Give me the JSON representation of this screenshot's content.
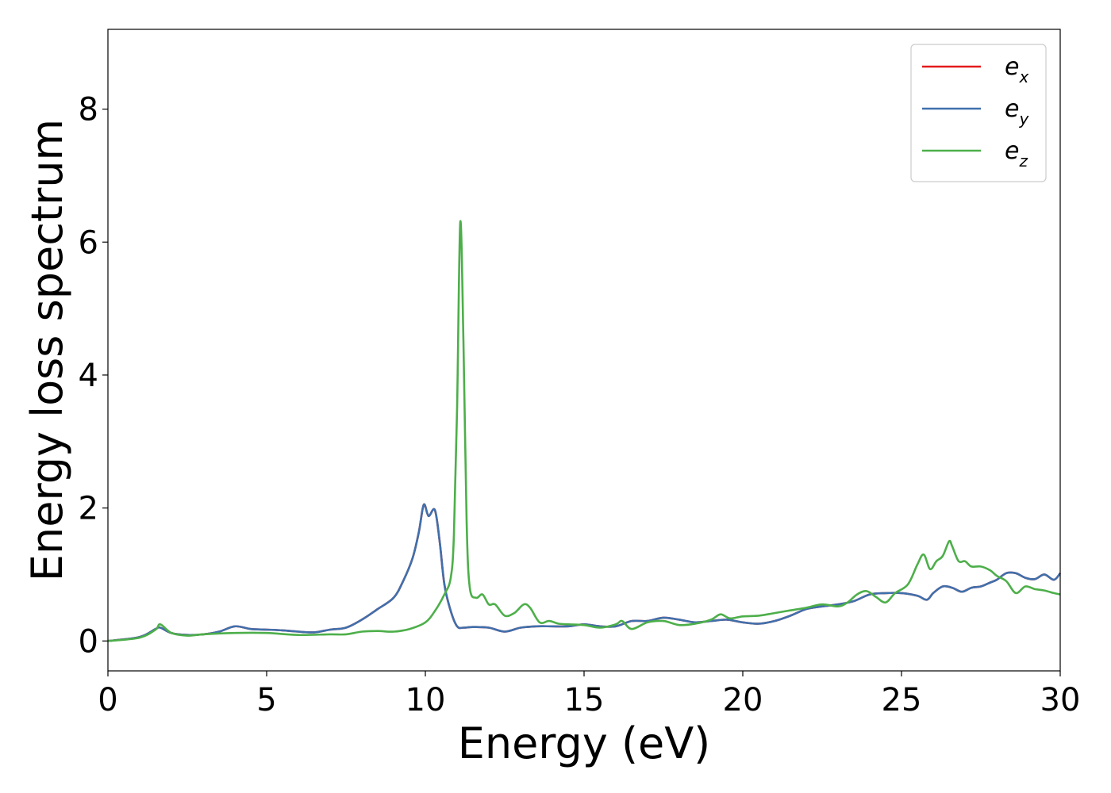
{
  "chart_data": {
    "type": "line",
    "xlabel": "Energy (eV)",
    "ylabel": "Energy loss spectrum",
    "xlim": [
      0,
      30
    ],
    "ylim": [
      -0.45,
      9.2
    ],
    "x_ticks": [
      0,
      5,
      10,
      15,
      20,
      25,
      30
    ],
    "y_ticks": [
      0,
      2,
      4,
      6,
      8
    ],
    "grid": false,
    "legend_position": "top-right",
    "series": [
      {
        "name": "e",
        "subscript": "x",
        "color": "#e41a1c",
        "x": [
          0,
          1,
          1.5,
          1.65,
          2,
          2.5,
          3,
          3.5,
          4,
          4.5,
          5,
          5.5,
          6,
          6.5,
          7,
          7.5,
          8,
          8.5,
          9,
          9.3,
          9.6,
          9.8,
          9.95,
          10.1,
          10.3,
          10.45,
          10.6,
          10.8,
          11,
          11.2,
          11.5,
          12,
          12.5,
          13,
          13.5,
          14,
          14.5,
          15,
          15.5,
          16,
          16.5,
          17,
          17.5,
          18,
          18.5,
          19,
          19.5,
          20,
          20.5,
          21,
          21.5,
          22,
          22.5,
          23,
          23.5,
          24,
          24.5,
          25,
          25.5,
          25.8,
          26,
          26.3,
          26.6,
          26.9,
          27.2,
          27.5,
          27.8,
          28,
          28.3,
          28.6,
          28.9,
          29.2,
          29.5,
          29.8,
          30
        ],
        "y": [
          0,
          0.06,
          0.18,
          0.2,
          0.12,
          0.09,
          0.1,
          0.14,
          0.22,
          0.18,
          0.17,
          0.16,
          0.14,
          0.13,
          0.17,
          0.2,
          0.32,
          0.48,
          0.65,
          0.9,
          1.25,
          1.65,
          2.05,
          1.88,
          1.97,
          1.5,
          0.85,
          0.45,
          0.22,
          0.2,
          0.21,
          0.2,
          0.14,
          0.2,
          0.22,
          0.22,
          0.22,
          0.25,
          0.22,
          0.22,
          0.3,
          0.3,
          0.35,
          0.32,
          0.28,
          0.3,
          0.32,
          0.28,
          0.26,
          0.3,
          0.38,
          0.48,
          0.52,
          0.55,
          0.6,
          0.7,
          0.72,
          0.72,
          0.68,
          0.62,
          0.72,
          0.82,
          0.8,
          0.74,
          0.8,
          0.82,
          0.88,
          0.92,
          1.02,
          1.02,
          0.95,
          0.93,
          1.0,
          0.92,
          1.02
        ]
      },
      {
        "name": "e",
        "subscript": "y",
        "color": "#3f70ac",
        "x": [
          0,
          1,
          1.5,
          1.65,
          2,
          2.5,
          3,
          3.5,
          4,
          4.5,
          5,
          5.5,
          6,
          6.5,
          7,
          7.5,
          8,
          8.5,
          9,
          9.3,
          9.6,
          9.8,
          9.95,
          10.1,
          10.3,
          10.45,
          10.6,
          10.8,
          11,
          11.2,
          11.5,
          12,
          12.5,
          13,
          13.5,
          14,
          14.5,
          15,
          15.5,
          16,
          16.5,
          17,
          17.5,
          18,
          18.5,
          19,
          19.5,
          20,
          20.5,
          21,
          21.5,
          22,
          22.5,
          23,
          23.5,
          24,
          24.5,
          25,
          25.5,
          25.8,
          26,
          26.3,
          26.6,
          26.9,
          27.2,
          27.5,
          27.8,
          28,
          28.3,
          28.6,
          28.9,
          29.2,
          29.5,
          29.8,
          30
        ],
        "y": [
          0,
          0.06,
          0.18,
          0.2,
          0.12,
          0.09,
          0.1,
          0.14,
          0.22,
          0.18,
          0.17,
          0.16,
          0.14,
          0.13,
          0.17,
          0.2,
          0.32,
          0.48,
          0.65,
          0.9,
          1.25,
          1.65,
          2.05,
          1.88,
          1.97,
          1.5,
          0.85,
          0.45,
          0.22,
          0.2,
          0.21,
          0.2,
          0.14,
          0.2,
          0.22,
          0.22,
          0.22,
          0.25,
          0.22,
          0.22,
          0.3,
          0.3,
          0.35,
          0.32,
          0.28,
          0.3,
          0.32,
          0.28,
          0.26,
          0.3,
          0.38,
          0.48,
          0.52,
          0.55,
          0.6,
          0.7,
          0.72,
          0.72,
          0.68,
          0.62,
          0.72,
          0.82,
          0.8,
          0.74,
          0.8,
          0.82,
          0.88,
          0.92,
          1.02,
          1.02,
          0.95,
          0.93,
          1.0,
          0.92,
          1.02
        ]
      },
      {
        "name": "e",
        "subscript": "z",
        "color": "#4daf4a",
        "x": [
          0,
          1,
          1.5,
          1.65,
          2,
          2.5,
          3,
          4,
          5,
          6,
          7,
          7.5,
          8,
          8.5,
          9,
          9.5,
          10,
          10.3,
          10.6,
          10.8,
          10.9,
          11.0,
          11.1,
          11.2,
          11.3,
          11.4,
          11.6,
          11.8,
          12.0,
          12.2,
          12.5,
          12.8,
          13.1,
          13.3,
          13.6,
          13.9,
          14.2,
          14.5,
          15,
          15.5,
          16,
          16.2,
          16.5,
          17,
          17.5,
          18,
          18.5,
          19,
          19.3,
          19.6,
          20,
          20.5,
          21,
          21.5,
          22,
          22.5,
          23,
          23.3,
          23.6,
          23.9,
          24.2,
          24.5,
          24.8,
          25.2,
          25.5,
          25.7,
          25.9,
          26.1,
          26.3,
          26.5,
          26.6,
          26.8,
          27.0,
          27.2,
          27.5,
          27.8,
          28.0,
          28.3,
          28.6,
          28.9,
          29.2,
          29.5,
          29.8,
          30
        ],
        "y": [
          0,
          0.05,
          0.17,
          0.25,
          0.12,
          0.08,
          0.1,
          0.12,
          0.12,
          0.09,
          0.1,
          0.1,
          0.14,
          0.15,
          0.14,
          0.18,
          0.28,
          0.45,
          0.7,
          0.95,
          1.6,
          3.5,
          6.3,
          4.5,
          1.8,
          0.8,
          0.65,
          0.7,
          0.55,
          0.55,
          0.38,
          0.42,
          0.55,
          0.5,
          0.28,
          0.3,
          0.26,
          0.25,
          0.24,
          0.2,
          0.25,
          0.3,
          0.18,
          0.28,
          0.3,
          0.24,
          0.26,
          0.32,
          0.4,
          0.34,
          0.37,
          0.38,
          0.42,
          0.46,
          0.5,
          0.55,
          0.52,
          0.58,
          0.7,
          0.75,
          0.66,
          0.58,
          0.72,
          0.85,
          1.15,
          1.3,
          1.08,
          1.2,
          1.28,
          1.5,
          1.42,
          1.2,
          1.2,
          1.12,
          1.12,
          1.06,
          0.98,
          0.9,
          0.72,
          0.82,
          0.78,
          0.76,
          0.72,
          0.7
        ]
      }
    ]
  }
}
